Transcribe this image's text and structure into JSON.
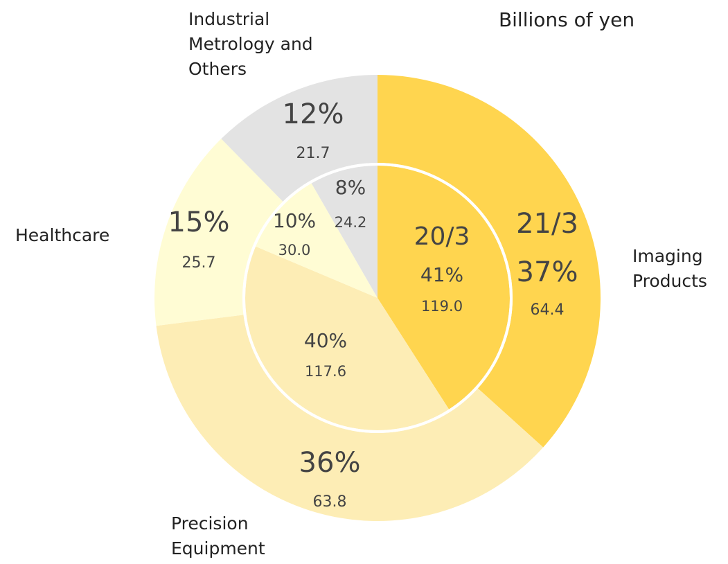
{
  "chart_data": {
    "type": "pie",
    "title": "Billions of yen",
    "categories": [
      "Imaging Products",
      "Precision Equipment",
      "Healthcare",
      "Industrial Metrology and Others"
    ],
    "colors": [
      "#ffd54f",
      "#fdedb5",
      "#fffcd4",
      "#e3e3e3"
    ],
    "series": [
      {
        "name": "21/3",
        "values": [
          37,
          36,
          15,
          12
        ],
        "value_labels": [
          "37%",
          "36%",
          "15%",
          "12%"
        ],
        "amounts": [
          64.4,
          63.8,
          25.7,
          21.7
        ]
      },
      {
        "name": "20/3",
        "values": [
          41,
          40,
          10,
          8
        ],
        "value_labels": [
          "41%",
          "40%",
          "10%",
          "8%"
        ],
        "amounts": [
          119,
          117.6,
          30,
          24.2
        ],
        "amount_labels": [
          "119.0",
          "117.6",
          "30.0",
          "24.2"
        ]
      }
    ]
  }
}
